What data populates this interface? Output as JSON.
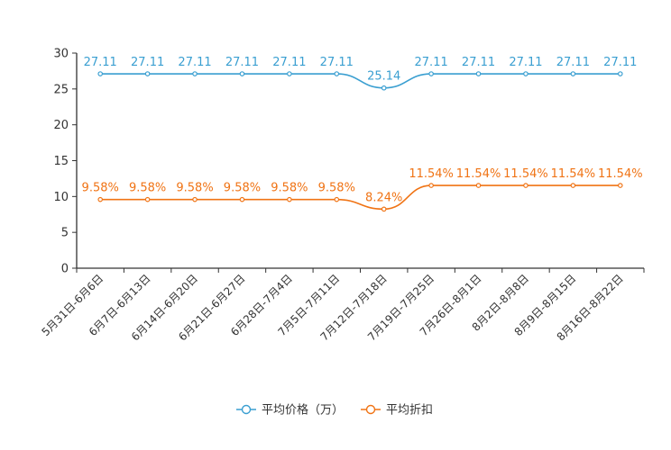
{
  "chart_data": {
    "type": "line",
    "title": "",
    "xlabel": "",
    "ylabel": "",
    "ylim": [
      0,
      30
    ],
    "yticks": [
      0,
      5,
      10,
      15,
      20,
      25,
      30
    ],
    "grid": false,
    "legend_position": "bottom",
    "categories": [
      "5月31日-6月6日",
      "6月7日-6月13日",
      "6月14日-6月20日",
      "6月21日-6月27日",
      "6月28日-7月4日",
      "7月5日-7月11日",
      "7月12日-7月18日",
      "7月19日-7月25日",
      "7月26日-8月1日",
      "8月2日-8月8日",
      "8月9日-8月15日",
      "8月16日-8月22日"
    ],
    "series": [
      {
        "name": "平均价格（万）",
        "color": "#3a9fd1",
        "values": [
          27.11,
          27.11,
          27.11,
          27.11,
          27.11,
          27.11,
          25.14,
          27.11,
          27.11,
          27.11,
          27.11,
          27.11
        ],
        "labels": [
          "27.11",
          "27.11",
          "27.11",
          "27.11",
          "27.11",
          "27.11",
          "25.14",
          "27.11",
          "27.11",
          "27.11",
          "27.11",
          "27.11"
        ]
      },
      {
        "name": "平均折扣",
        "color": "#f07314",
        "values": [
          9.58,
          9.58,
          9.58,
          9.58,
          9.58,
          9.58,
          8.24,
          11.54,
          11.54,
          11.54,
          11.54,
          11.54
        ],
        "labels": [
          "9.58%",
          "9.58%",
          "9.58%",
          "9.58%",
          "9.58%",
          "9.58%",
          "8.24%",
          "11.54%",
          "11.54%",
          "11.54%",
          "11.54%",
          "11.54%"
        ]
      }
    ]
  }
}
